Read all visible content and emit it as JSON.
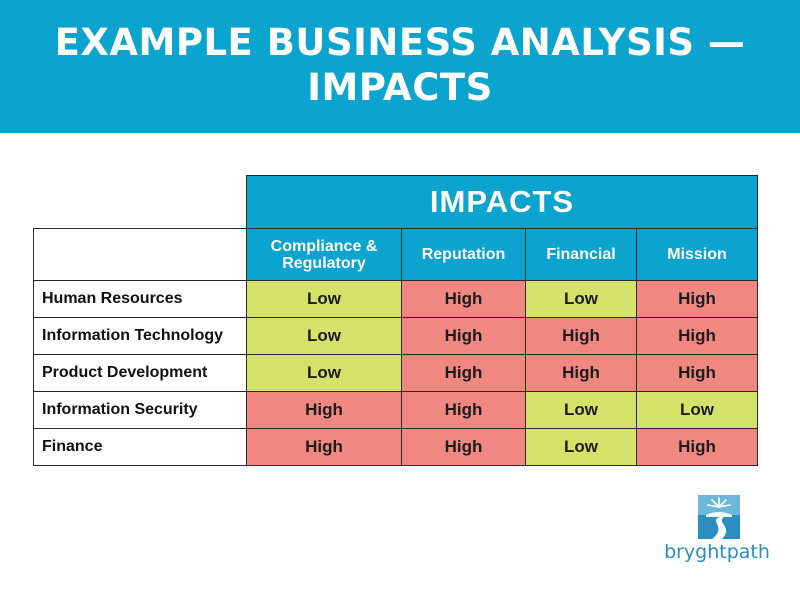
{
  "title": {
    "line1": "EXAMPLE BUSINESS ANALYSIS —",
    "line2": "IMPACTS"
  },
  "table": {
    "group_header": "IMPACTS",
    "columns": [
      "Compliance & Regulatory",
      "Reputation",
      "Financial",
      "Mission"
    ],
    "rows": [
      {
        "label": "Human Resources",
        "values": [
          "Low",
          "High",
          "Low",
          "High"
        ]
      },
      {
        "label": "Information Technology",
        "values": [
          "Low",
          "High",
          "High",
          "High"
        ]
      },
      {
        "label": "Product Development",
        "values": [
          "Low",
          "High",
          "High",
          "High"
        ]
      },
      {
        "label": "Information Security",
        "values": [
          "High",
          "High",
          "Low",
          "Low"
        ]
      },
      {
        "label": "Finance",
        "values": [
          "High",
          "High",
          "Low",
          "High"
        ]
      }
    ],
    "colors": {
      "Low": "#d4e26a",
      "High": "#f08780",
      "header": "#0aa4cf"
    }
  },
  "logo": {
    "icon": "sun-road-icon",
    "wordmark": "bryghtpath"
  }
}
